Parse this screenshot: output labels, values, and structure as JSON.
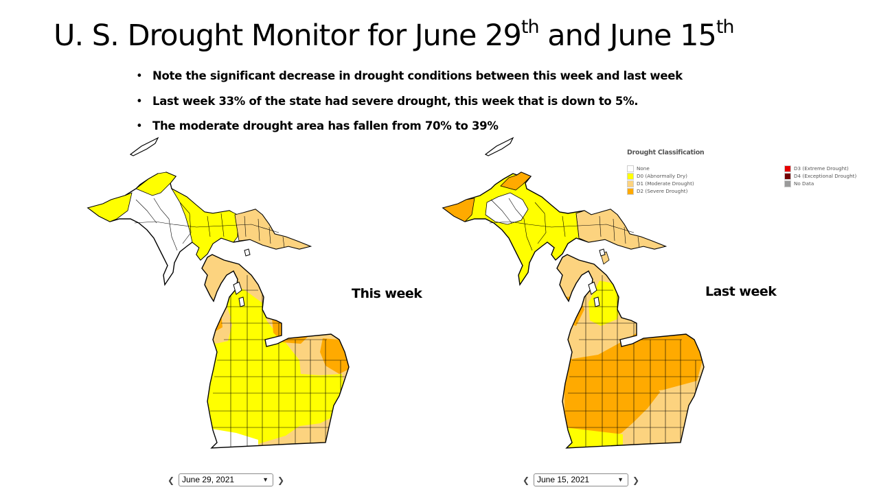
{
  "slide": {
    "title_main": "U. S.  Drought Monitor for June 29",
    "title_sup1": "th",
    "title_mid": " and June 15",
    "title_sup2": "th"
  },
  "bullets": [
    "Note the significant decrease in drought conditions between this week and last week",
    "Last week 33% of the state had severe drought, this week that is down to 5%.",
    "The moderate drought area has fallen from 70% to 39%"
  ],
  "maps": {
    "this_week": {
      "label": "This week",
      "date": "June 29, 2021"
    },
    "last_week": {
      "label": "Last week",
      "date": "June 15, 2021"
    }
  },
  "legend": {
    "title": "Drought Classification",
    "items": [
      {
        "label": "None",
        "color": "#ffffff"
      },
      {
        "label": "D0 (Abnormally Dry)",
        "color": "#ffff00"
      },
      {
        "label": "D1 (Moderate Drought)",
        "color": "#fcd37f"
      },
      {
        "label": "D2 (Severe Drought)",
        "color": "#ffaa00"
      },
      {
        "label": "D3 (Extreme Drought)",
        "color": "#e60000"
      },
      {
        "label": "D4 (Exceptional Drought)",
        "color": "#730000"
      },
      {
        "label": "No Data",
        "color": "#9a9a9a"
      }
    ]
  },
  "controls": {
    "prev_icon": "chevron-left-icon",
    "next_icon": "chevron-right-icon",
    "dropdown_icon": "chevron-down-icon"
  }
}
